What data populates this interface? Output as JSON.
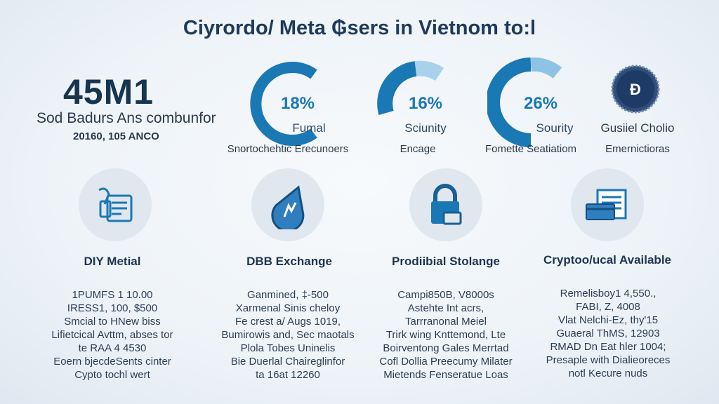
{
  "title": "Ciyrordo/ Meta ₲sers in Vietnom to:l",
  "headline": {
    "value": "45M1",
    "subtitle": "Sod Badurs Ans combunfor",
    "detail": "20160, 105 ANCO"
  },
  "stats": [
    {
      "percent": "18%",
      "label": "Fumal",
      "caption": "Snortochehtic Erecunoers",
      "value": 18
    },
    {
      "percent": "16%",
      "label": "Sciunity",
      "caption": "Encage",
      "value": 16
    },
    {
      "percent": "26%",
      "label": "Sourity",
      "caption": "Fomette Seatiatiom",
      "value": 26
    },
    {
      "label": "Gusiiel Cholio",
      "caption": "Emernictioras",
      "icon": "seal-badge-icon"
    }
  ],
  "features": [
    {
      "icon": "wallet-card-icon",
      "heading": "DIY Metial",
      "lines": [
        "1PUMFS 1 10.00",
        "IRESS1, 100, $500",
        "Smcial to HNew biss",
        "Lifietcical Avttm, abses tor",
        "te RAA 4 4530",
        "Eoern bjecdeSents cinter",
        "Cypto tochl wert"
      ]
    },
    {
      "icon": "shield-drop-icon",
      "heading": "DBB Exchange",
      "lines": [
        "Ganmined, ‡-500",
        "Xarmenal Sinis cheloy",
        "Fe crest a/ Augs 1019,",
        "Bumirowis and, Sec maotals",
        "Plola Tobes Uninelis",
        "Bie Duerlal Chaireglinfor",
        "ta 16at 12260"
      ]
    },
    {
      "icon": "lock-icon",
      "heading": "Prodiibial Stolange",
      "lines": [
        "Campi850B, V8000s",
        "Astehte Int acrs,",
        "Tarrranonal Meiel",
        "Trirk wing Knttemond, Lte",
        "Boirventong Gales Merrtad",
        "Cofl Dollia Preecumy Milater",
        "Mietends Fenseratue Loas"
      ]
    },
    {
      "icon": "bank-card-icon",
      "heading": "Cryptoo/ucal Available",
      "lines": [
        "Remelisboy1 4,550.,",
        "FABI, Z, 4008",
        "Vlat Nelchi-Ez, thy'15",
        "Guaeral ThMS, 12903",
        "RMAD Dn Eat hler 1004;",
        "Presaple with Dialieoreces",
        "notl Kecure nuds"
      ]
    }
  ],
  "colors": {
    "primary": "#1a78b4",
    "light": "#8fc3e6",
    "navy": "#1e3a5a"
  }
}
